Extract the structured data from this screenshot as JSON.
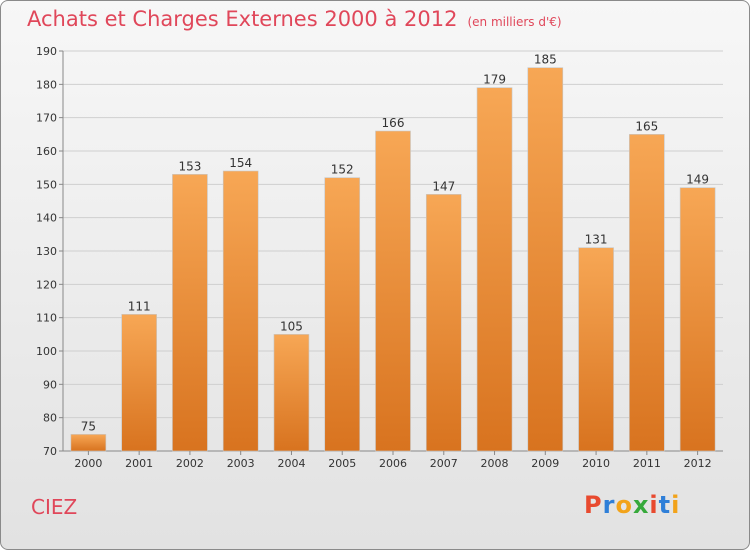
{
  "header": {
    "title": "Achats et Charges Externes 2000 à 2012",
    "subtitle": "(en milliers d'€)"
  },
  "footer": {
    "commune": "CIEZ",
    "logo_letters": [
      "P",
      "r",
      "o",
      "x",
      "i",
      "t",
      "i"
    ],
    "logo_colors": [
      "#e84a2f",
      "#2f7fd8",
      "#f2a31a",
      "#36a93b",
      "#e84a2f",
      "#2f7fd8",
      "#f2a31a"
    ]
  },
  "colors": {
    "bar_top": "#f7a755",
    "bar_bottom": "#d8731f",
    "grid": "#cfcfcf",
    "text": "#333333",
    "accent": "#e0475a"
  },
  "chart_data": {
    "type": "bar",
    "title": "Achats et Charges Externes 2000 à 2012",
    "subtitle": "(en milliers d'€)",
    "categories": [
      "2000",
      "2001",
      "2002",
      "2003",
      "2004",
      "2005",
      "2006",
      "2007",
      "2008",
      "2009",
      "2010",
      "2011",
      "2012"
    ],
    "values": [
      75,
      111,
      153,
      154,
      105,
      152,
      166,
      147,
      179,
      185,
      131,
      165,
      149
    ],
    "xlabel": "",
    "ylabel": "",
    "ylim": [
      70,
      190
    ],
    "yticks": [
      70,
      80,
      90,
      100,
      110,
      120,
      130,
      140,
      150,
      160,
      170,
      180,
      190
    ],
    "grid": true
  }
}
